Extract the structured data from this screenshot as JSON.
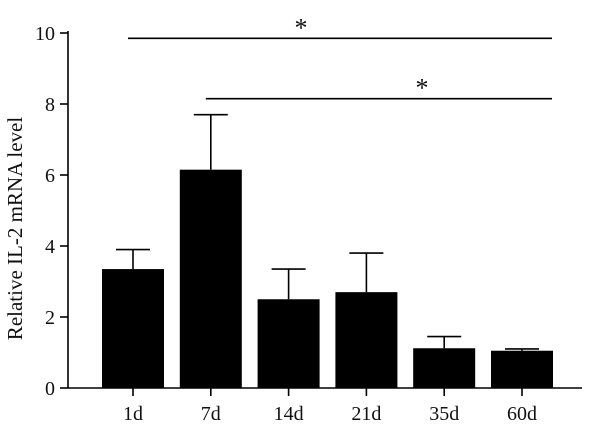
{
  "chart_data": {
    "type": "bar",
    "title": "",
    "xlabel": "",
    "ylabel": "Relative IL-2 mRNA level",
    "categories": [
      "1d",
      "7d",
      "14d",
      "21d",
      "35d",
      "60d"
    ],
    "values": [
      3.35,
      6.15,
      2.5,
      2.7,
      1.12,
      1.05
    ],
    "error": [
      0.55,
      1.55,
      0.85,
      1.1,
      0.33,
      0.05
    ],
    "ylim": [
      0,
      10
    ],
    "yticks": [
      0,
      2,
      4,
      6,
      8,
      10
    ],
    "bar_color": "#000000",
    "grid": false,
    "significance": [
      {
        "from": "1d",
        "to": "60d",
        "y": 9.85,
        "label": "*"
      },
      {
        "from": "7d",
        "to": "60d",
        "y": 8.15,
        "label": "*"
      }
    ]
  }
}
